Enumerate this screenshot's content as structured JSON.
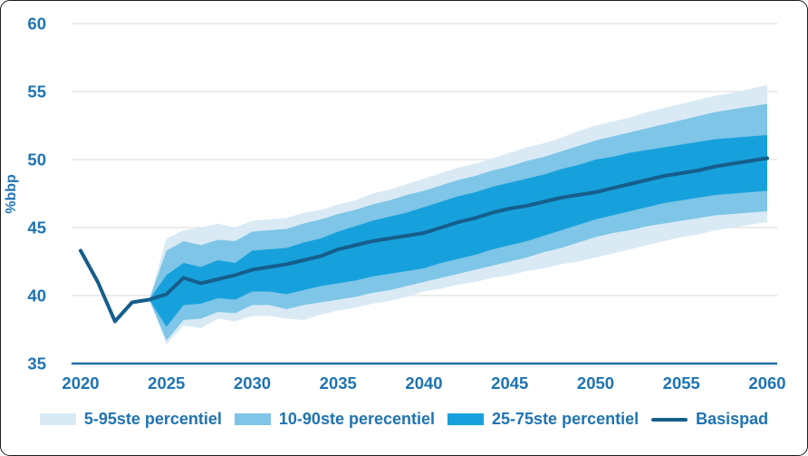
{
  "figure": {
    "y_axis_title": "%bbp"
  },
  "style": {
    "text_color": "#1E73B2",
    "axis_color": "#1E6FA9",
    "grid_color": "#DADADA",
    "band_light": "#D9EAF5",
    "band_medium": "#7EC5E7",
    "band_dark": "#17A1DC",
    "line_color": "#155E8C"
  },
  "chart_data": {
    "type": "area",
    "title": "",
    "xlabel": "",
    "ylabel": "%bbp",
    "x_range": [
      2020,
      2060
    ],
    "ylim": [
      35,
      60
    ],
    "xticks": [
      2020,
      2025,
      2030,
      2035,
      2040,
      2045,
      2050,
      2055,
      2060
    ],
    "yticks": [
      35,
      40,
      45,
      50,
      55,
      60
    ],
    "grid": "horizontal-only",
    "legend_position": "bottom",
    "description": "Fan chart of pension/GDP projection (%bbp) with percentile bands starting 2024 and central Basispad path 2020-2060",
    "series": [
      {
        "id": "band-5-95",
        "name": "5-95ste percentiel",
        "type": "band",
        "color": "#D9EAF5",
        "year_start": 2024,
        "lower": [
          39.7,
          36.4,
          37.8,
          37.6,
          38.3,
          38.1,
          38.5,
          38.5,
          38.3,
          38.2,
          38.6,
          38.9,
          39.1,
          39.4,
          39.6,
          39.9,
          40.3,
          40.5,
          40.8,
          41.0,
          41.3,
          41.5,
          41.8,
          42.0,
          42.3,
          42.5,
          42.8,
          43.1,
          43.4,
          43.7,
          44.0,
          44.3,
          44.5,
          44.8,
          45.0,
          45.2,
          45.4
        ],
        "upper": [
          39.7,
          44.2,
          44.8,
          45.0,
          45.3,
          45.0,
          45.5,
          45.6,
          45.7,
          46.1,
          46.3,
          46.7,
          47.0,
          47.5,
          47.8,
          48.2,
          48.6,
          49.0,
          49.4,
          49.7,
          50.1,
          50.5,
          50.9,
          51.2,
          51.6,
          52.1,
          52.5,
          52.8,
          53.1,
          53.5,
          53.8,
          54.1,
          54.4,
          54.7,
          54.9,
          55.2,
          55.5
        ]
      },
      {
        "id": "band-10-90",
        "name": "10-90ste perecentiel",
        "type": "band",
        "color": "#7EC5E7",
        "year_start": 2024,
        "lower": [
          39.7,
          36.7,
          38.2,
          38.3,
          38.8,
          38.7,
          39.3,
          39.3,
          39.0,
          39.3,
          39.5,
          39.7,
          39.9,
          40.2,
          40.4,
          40.7,
          41.0,
          41.3,
          41.6,
          41.9,
          42.2,
          42.5,
          42.8,
          43.2,
          43.5,
          43.9,
          44.3,
          44.6,
          44.8,
          45.1,
          45.3,
          45.5,
          45.7,
          45.9,
          46.0,
          46.1,
          46.2
        ],
        "upper": [
          39.7,
          43.3,
          44.0,
          43.7,
          44.1,
          44.0,
          44.7,
          44.8,
          44.9,
          45.3,
          45.6,
          46.0,
          46.3,
          46.7,
          47.0,
          47.4,
          47.7,
          48.1,
          48.5,
          48.8,
          49.2,
          49.5,
          49.9,
          50.2,
          50.6,
          51.0,
          51.4,
          51.7,
          52.0,
          52.3,
          52.6,
          52.9,
          53.2,
          53.5,
          53.7,
          53.9,
          54.1
        ]
      },
      {
        "id": "band-25-75",
        "name": "25-75ste percentiel",
        "type": "band",
        "color": "#17A1DC",
        "year_start": 2024,
        "lower": [
          39.7,
          37.7,
          39.3,
          39.4,
          39.8,
          39.7,
          40.3,
          40.3,
          40.1,
          40.4,
          40.7,
          40.9,
          41.1,
          41.4,
          41.6,
          41.8,
          42.0,
          42.4,
          42.7,
          43.0,
          43.4,
          43.7,
          44.0,
          44.4,
          44.8,
          45.2,
          45.6,
          45.9,
          46.2,
          46.5,
          46.8,
          47.0,
          47.2,
          47.4,
          47.5,
          47.6,
          47.7
        ],
        "upper": [
          39.7,
          41.5,
          42.4,
          42.1,
          42.6,
          42.4,
          43.3,
          43.4,
          43.5,
          43.9,
          44.2,
          44.7,
          45.1,
          45.5,
          45.8,
          46.1,
          46.5,
          46.9,
          47.3,
          47.6,
          48.0,
          48.3,
          48.6,
          48.9,
          49.3,
          49.6,
          50.0,
          50.2,
          50.5,
          50.7,
          50.9,
          51.1,
          51.3,
          51.5,
          51.6,
          51.7,
          51.8
        ]
      },
      {
        "id": "basispad",
        "name": "Basispad",
        "type": "line",
        "color": "#155E8C",
        "year_start": 2020,
        "values": [
          43.3,
          41.0,
          38.1,
          39.5,
          39.7,
          40.1,
          41.3,
          40.9,
          41.2,
          41.5,
          41.9,
          42.1,
          42.3,
          42.6,
          42.9,
          43.4,
          43.7,
          44.0,
          44.2,
          44.4,
          44.6,
          45.0,
          45.4,
          45.7,
          46.1,
          46.4,
          46.6,
          46.9,
          47.2,
          47.4,
          47.6,
          47.9,
          48.2,
          48.5,
          48.8,
          49.0,
          49.2,
          49.5,
          49.7,
          49.9,
          50.1
        ]
      }
    ]
  }
}
